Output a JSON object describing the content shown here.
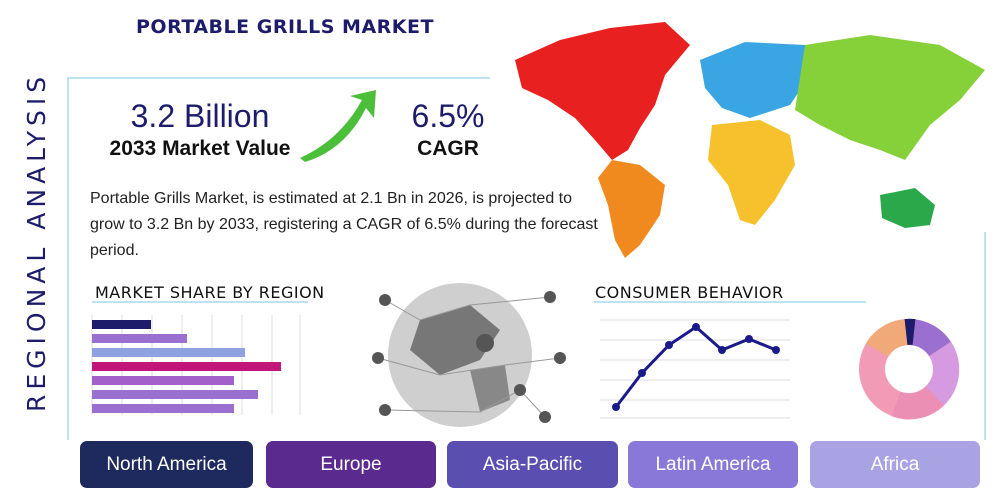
{
  "header": {
    "title": "PORTABLE GRILLS MARKET",
    "side_label": "REGIONAL ANALYSIS"
  },
  "highlights": [
    {
      "value": "3.2 Billion",
      "label": "2033 Market Value"
    },
    {
      "value": "6.5%",
      "label": "CAGR"
    }
  ],
  "description": "Portable Grills Market, is estimated at 2.1 Bn in 2026, is projected to grow to 3.2 Bn by 2033, registering a CAGR of 6.5% during the forecast period.",
  "sections": {
    "market_share": "MARKET SHARE BY REGION",
    "consumer_behavior": "CONSUMER BEHAVIOR"
  },
  "regions": [
    "North America",
    "Europe",
    "Asia-Pacific",
    "Latin America",
    "Africa"
  ]
}
